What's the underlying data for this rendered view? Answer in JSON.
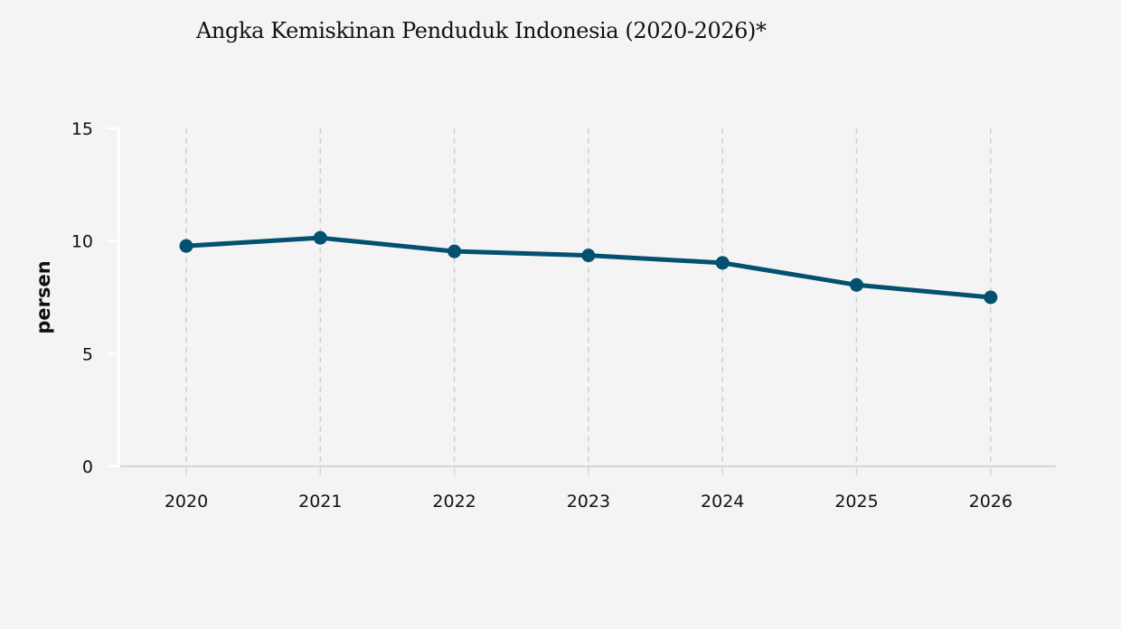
{
  "title": "Angka Kemiskinan Penduduk Indonesia (2020-2026)*",
  "colors": {
    "background": "#f4f4f4",
    "line": "#03506f",
    "grid": "#cfcfcf",
    "axis_x": "#d6d6d6",
    "axis_y": "#ffffff"
  },
  "chart_data": {
    "type": "line",
    "title": "Angka Kemiskinan Penduduk Indonesia (2020-2026)*",
    "xlabel": "",
    "ylabel": "persen",
    "categories": [
      "2020",
      "2021",
      "2022",
      "2023",
      "2024",
      "2025",
      "2026"
    ],
    "series": [
      {
        "name": "Angka Kemiskinan",
        "values": [
          9.78,
          10.14,
          9.54,
          9.36,
          9.03,
          8.05,
          7.5
        ]
      }
    ],
    "ylim": [
      0,
      15
    ],
    "yticks": [
      0,
      5,
      10,
      15
    ],
    "grid": {
      "vertical": "dashed",
      "horizontal": false
    },
    "legend": null
  }
}
